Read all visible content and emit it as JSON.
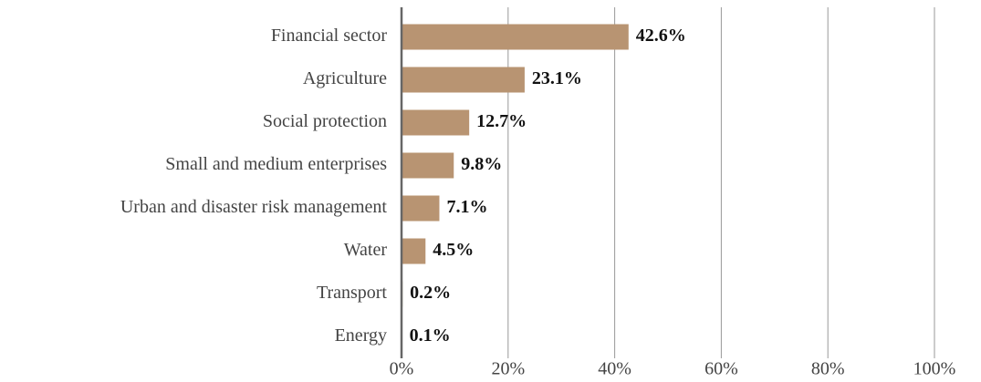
{
  "chart_data": {
    "type": "bar",
    "orientation": "horizontal",
    "categories": [
      "Financial sector",
      "Agriculture",
      "Social protection",
      "Small and medium enterprises",
      "Urban and disaster risk management",
      "Water",
      "Transport",
      "Energy"
    ],
    "values": [
      42.6,
      23.1,
      12.7,
      9.8,
      7.1,
      4.5,
      0.2,
      0.1
    ],
    "value_labels": [
      "42.6%",
      "23.1%",
      "12.7%",
      "9.8%",
      "7.1%",
      "4.5%",
      "0.2%",
      "0.1%"
    ],
    "color": "#b89472",
    "xlim": [
      0,
      100
    ],
    "xticks": [
      {
        "value": 0,
        "label": "0%"
      },
      {
        "value": 20,
        "label": "20%"
      },
      {
        "value": 40,
        "label": "40%"
      },
      {
        "value": 60,
        "label": "60%"
      },
      {
        "value": 80,
        "label": "80%"
      },
      {
        "value": 100,
        "label": "100%"
      }
    ],
    "grid": true
  }
}
